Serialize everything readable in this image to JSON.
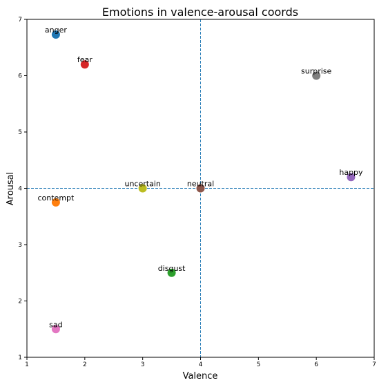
{
  "chart_data": {
    "type": "scatter",
    "title": "Emotions in valence-arousal coords",
    "xlabel": "Valence",
    "ylabel": "Arousal",
    "xlim": [
      1,
      7
    ],
    "ylim": [
      1,
      7
    ],
    "xticks": [
      1,
      2,
      3,
      4,
      5,
      6,
      7
    ],
    "yticks": [
      1,
      2,
      3,
      4,
      5,
      6,
      7
    ],
    "grid": false,
    "reference_lines": [
      {
        "axis": "x",
        "value": 4,
        "style": "dashed",
        "color": "#1f77b4"
      },
      {
        "axis": "y",
        "value": 4,
        "style": "dashed",
        "color": "#1f77b4"
      }
    ],
    "points": [
      {
        "label": "anger",
        "x": 1.5,
        "y": 6.73,
        "color": "#1f77b4"
      },
      {
        "label": "contempt",
        "x": 1.5,
        "y": 3.75,
        "color": "#ff7f0e"
      },
      {
        "label": "disgust",
        "x": 3.5,
        "y": 2.5,
        "color": "#2ca02c"
      },
      {
        "label": "fear",
        "x": 2.0,
        "y": 6.2,
        "color": "#d62728"
      },
      {
        "label": "happy",
        "x": 6.6,
        "y": 4.2,
        "color": "#9467bd"
      },
      {
        "label": "neutral",
        "x": 4.0,
        "y": 4.0,
        "color": "#8c564b"
      },
      {
        "label": "sad",
        "x": 1.5,
        "y": 1.5,
        "color": "#e377c2"
      },
      {
        "label": "surprise",
        "x": 6.0,
        "y": 6.0,
        "color": "#7f7f7f"
      },
      {
        "label": "uncertain",
        "x": 3.0,
        "y": 4.0,
        "color": "#bcbd22"
      }
    ]
  }
}
